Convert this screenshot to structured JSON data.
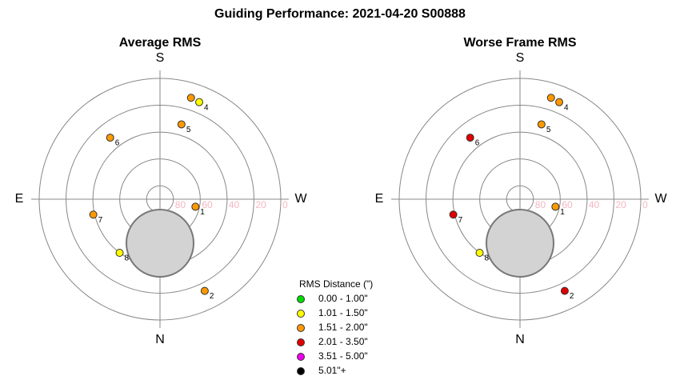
{
  "title": "Guiding Performance: 2021-04-20 S00888",
  "chart_data": [
    {
      "type": "polar",
      "title": "Average RMS",
      "directions": {
        "top": "S",
        "right": "W",
        "bottom": "N",
        "left": "E"
      },
      "rlim": [
        90,
        0
      ],
      "rticks": [
        80,
        60,
        40,
        20,
        0
      ],
      "series": [
        {
          "labels": [
            "1",
            "2",
            null,
            "4",
            "5",
            "6",
            "7",
            "8"
          ],
          "alt": [
            63,
            14,
            11,
            12,
            32,
            31,
            39,
            40
          ],
          "az": [
            282,
            334,
            197,
            202,
            196,
            141,
            77,
            37
          ],
          "colors": [
            "#ff9900",
            "#ff9900",
            "#ff9900",
            "#ffff00",
            "#ff9900",
            "#ff9900",
            "#ff9900",
            "#ffff00"
          ]
        }
      ]
    },
    {
      "type": "polar",
      "title": "Worse Frame RMS",
      "directions": {
        "top": "S",
        "right": "W",
        "bottom": "N",
        "left": "E"
      },
      "rlim": [
        90,
        0
      ],
      "rticks": [
        80,
        60,
        40,
        20,
        0
      ],
      "series": [
        {
          "labels": [
            "1",
            "2",
            null,
            "4",
            "5",
            "6",
            "7",
            "8"
          ],
          "alt": [
            63,
            14,
            11,
            12,
            32,
            31,
            39,
            40
          ],
          "az": [
            282,
            334,
            197,
            202,
            196,
            141,
            77,
            37
          ],
          "colors": [
            "#ff9900",
            "#e00000",
            "#ff9900",
            "#ff9900",
            "#ff9900",
            "#e00000",
            "#e00000",
            "#ffff00"
          ]
        }
      ]
    }
  ],
  "legend": {
    "title": "RMS Distance (\")",
    "items": [
      {
        "label": "0.00 - 1.00\"",
        "color": "#00dd00"
      },
      {
        "label": "1.01 - 1.50\"",
        "color": "#ffff00"
      },
      {
        "label": "1.51 - 2.00\"",
        "color": "#ff9900"
      },
      {
        "label": "2.01 - 3.50\"",
        "color": "#e00000"
      },
      {
        "label": "3.51 - 5.00\"",
        "color": "#ee00ee"
      },
      {
        "label": "5.01\"+",
        "color": "#000000"
      }
    ]
  }
}
